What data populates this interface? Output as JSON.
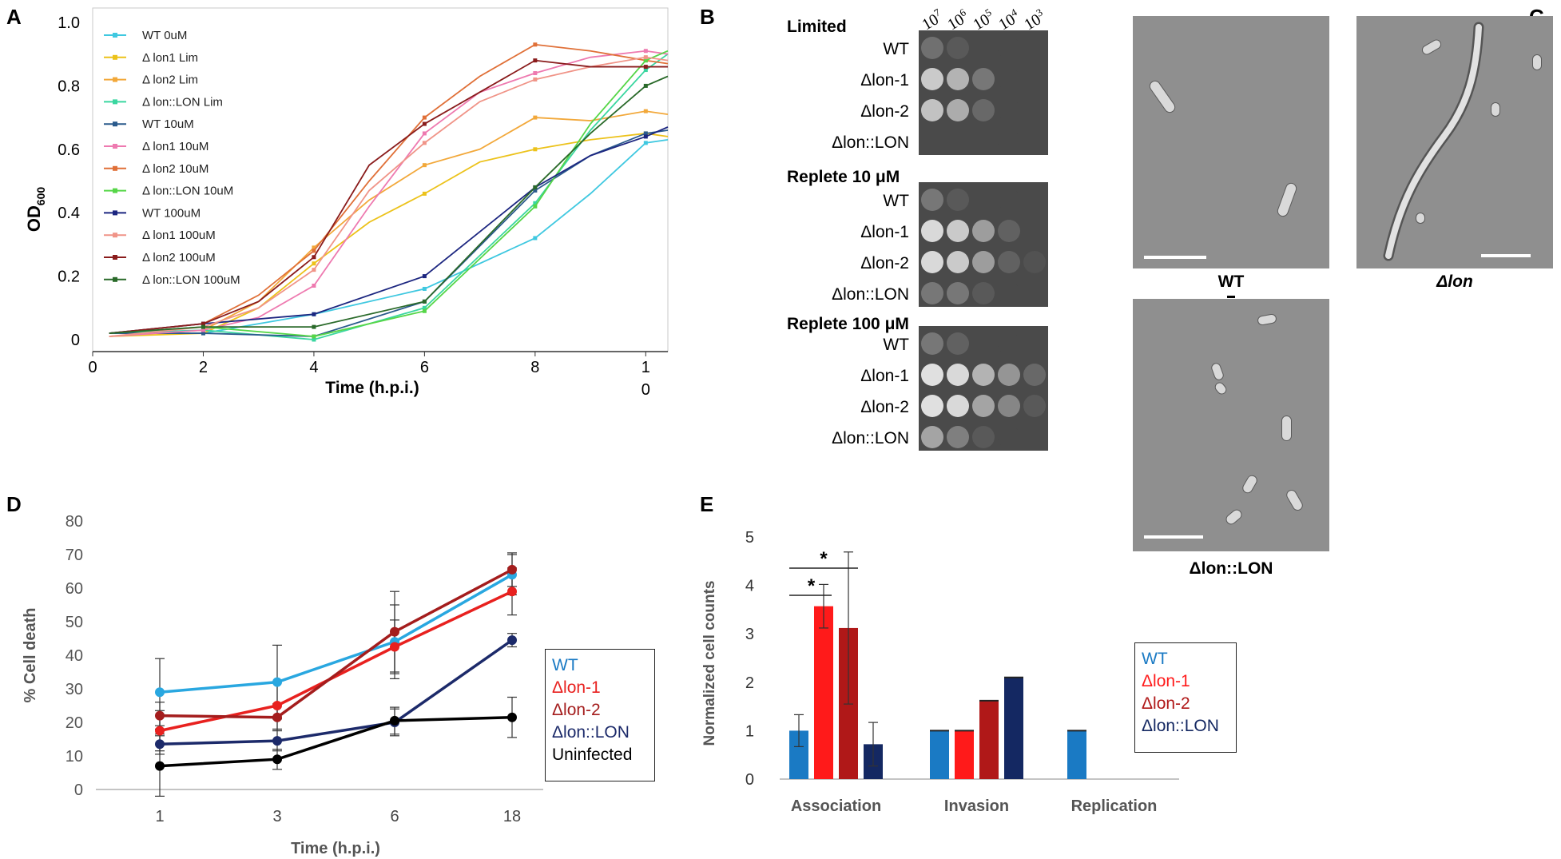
{
  "panels": {
    "A": "A",
    "B": "B",
    "C": "C",
    "D": "D",
    "E": "E"
  },
  "chart_data": [
    {
      "id": "A",
      "type": "line",
      "xlabel": "Time (h.p.i.)",
      "ylabel_main": "OD",
      "ylabel_sub": "600",
      "xlim": [
        0,
        10.4
      ],
      "ylim": [
        0,
        1.0
      ],
      "xticks": [
        {
          "v": 0,
          "l1": "0",
          "l2": ""
        },
        {
          "v": 2,
          "l1": "2",
          "l2": ""
        },
        {
          "v": 4,
          "l1": "4",
          "l2": ""
        },
        {
          "v": 6,
          "l1": "6",
          "l2": ""
        },
        {
          "v": 8,
          "l1": "8",
          "l2": ""
        },
        {
          "v": 10,
          "l1": "1",
          "l2": "0"
        }
      ],
      "yticks": [
        {
          "v": 0,
          "label": "0"
        },
        {
          "v": 0.2,
          "label": "0.2"
        },
        {
          "v": 0.4,
          "label": "0.4"
        },
        {
          "v": 0.6,
          "label": "0.6"
        },
        {
          "v": 0.8,
          "label": "0.8"
        },
        {
          "v": 1.0,
          "label": "1.0"
        }
      ],
      "series": [
        {
          "name": "WT 0uM",
          "color": "#3fc8e0",
          "x": [
            0.3,
            2,
            4,
            6,
            8,
            9,
            10,
            10.4
          ],
          "y": [
            0.02,
            0.02,
            0.08,
            0.16,
            0.32,
            0.46,
            0.62,
            0.63
          ]
        },
        {
          "name": "Δ lon1 Lim",
          "color": "#ecc21a",
          "x": [
            0.3,
            2,
            3,
            4,
            5,
            6,
            7,
            8,
            9,
            10,
            10.4
          ],
          "y": [
            0.01,
            0.02,
            0.1,
            0.24,
            0.37,
            0.46,
            0.56,
            0.6,
            0.63,
            0.65,
            0.64
          ]
        },
        {
          "name": "Δ lon2 Lim",
          "color": "#f2a83a",
          "x": [
            0.3,
            2,
            3,
            4,
            5,
            6,
            7,
            8,
            9,
            10,
            10.4
          ],
          "y": [
            0.01,
            0.03,
            0.12,
            0.29,
            0.44,
            0.55,
            0.6,
            0.7,
            0.69,
            0.72,
            0.71
          ]
        },
        {
          "name": "Δ lon::LON Lim",
          "color": "#3ad6a0",
          "x": [
            0.3,
            2,
            4,
            6,
            8,
            9,
            10,
            10.4
          ],
          "y": [
            0.02,
            0.03,
            0.0,
            0.1,
            0.43,
            0.66,
            0.85,
            0.9
          ]
        },
        {
          "name": "WT 10uM",
          "color": "#2a5a8c",
          "x": [
            0.3,
            2,
            4,
            6,
            8,
            9,
            10,
            10.4
          ],
          "y": [
            0.02,
            0.02,
            0.01,
            0.12,
            0.47,
            0.58,
            0.65,
            0.66
          ]
        },
        {
          "name": "Δ lon1 10uM",
          "color": "#ee7ab0",
          "x": [
            0.3,
            2,
            3,
            4,
            5,
            6,
            7,
            8,
            9,
            10,
            10.4
          ],
          "y": [
            0.01,
            0.03,
            0.07,
            0.17,
            0.42,
            0.65,
            0.78,
            0.84,
            0.89,
            0.91,
            0.9
          ]
        },
        {
          "name": "Δ lon2 10uM",
          "color": "#e07038",
          "x": [
            0.3,
            2,
            3,
            4,
            5,
            6,
            7,
            8,
            9,
            10,
            10.4
          ],
          "y": [
            0.02,
            0.05,
            0.14,
            0.28,
            0.5,
            0.7,
            0.83,
            0.93,
            0.91,
            0.88,
            0.87
          ]
        },
        {
          "name": "Δ lon::LON 10uM",
          "color": "#56d648",
          "x": [
            0.3,
            2,
            4,
            6,
            8,
            9,
            10,
            10.4
          ],
          "y": [
            0.02,
            0.04,
            0.01,
            0.09,
            0.42,
            0.68,
            0.88,
            0.91
          ]
        },
        {
          "name": "WT 100uM",
          "color": "#1c2680",
          "x": [
            0.3,
            2,
            4,
            6,
            8,
            9,
            10,
            10.4
          ],
          "y": [
            0.02,
            0.05,
            0.08,
            0.2,
            0.48,
            0.58,
            0.64,
            0.67
          ]
        },
        {
          "name": "Δ lon1 100uM",
          "color": "#f09488",
          "x": [
            0.3,
            2,
            3,
            4,
            5,
            6,
            7,
            8,
            9,
            10,
            10.4
          ],
          "y": [
            0.01,
            0.04,
            0.1,
            0.22,
            0.47,
            0.62,
            0.75,
            0.82,
            0.86,
            0.89,
            0.88
          ]
        },
        {
          "name": "Δ lon2 100uM",
          "color": "#8a1c1c",
          "x": [
            0.3,
            2,
            3,
            4,
            5,
            6,
            7,
            8,
            9,
            10,
            10.4
          ],
          "y": [
            0.02,
            0.05,
            0.12,
            0.26,
            0.55,
            0.68,
            0.78,
            0.88,
            0.86,
            0.86,
            0.86
          ]
        },
        {
          "name": "Δ lon::LON 100uM",
          "color": "#2a6a2a",
          "x": [
            0.3,
            2,
            4,
            6,
            8,
            9,
            10,
            10.4
          ],
          "y": [
            0.02,
            0.04,
            0.04,
            0.12,
            0.48,
            0.65,
            0.8,
            0.83
          ]
        }
      ]
    },
    {
      "id": "D",
      "type": "line",
      "xlabel": "Time (h.p.i.)",
      "ylabel": "% Cell death",
      "categories": [
        "1",
        "3",
        "6",
        "18"
      ],
      "ylim": [
        0,
        80
      ],
      "yticks": [
        0,
        10,
        20,
        30,
        40,
        50,
        60,
        70,
        80
      ],
      "series": [
        {
          "name": "WT",
          "color": "#29a7e0",
          "values": [
            29,
            32,
            44,
            64
          ],
          "err": [
            10,
            11,
            11,
            6
          ]
        },
        {
          "name": "Δlon-1",
          "color": "#e8211f",
          "values": [
            17.5,
            25,
            42.5,
            59
          ],
          "err": [
            6,
            7,
            8,
            7
          ]
        },
        {
          "name": "Δlon-2",
          "color": "#a41d1d",
          "values": [
            22,
            21.5,
            47,
            65.5
          ],
          "err": [
            4,
            4,
            12,
            5
          ]
        },
        {
          "name": "Δlon::LON",
          "color": "#1c2a6a",
          "values": [
            13.5,
            14.5,
            20,
            44.5
          ],
          "err": [
            3,
            3,
            4,
            2
          ]
        },
        {
          "name": "Uninfected",
          "color": "#000000",
          "values": [
            7,
            9,
            20.5,
            21.5
          ],
          "err": [
            9,
            3,
            4,
            6
          ]
        }
      ],
      "legend": [
        {
          "label": "WT",
          "color": "#1a7ac4"
        },
        {
          "label": "Δlon-1",
          "color": "#e8211f"
        },
        {
          "label": "Δlon-2",
          "color": "#a41d1d"
        },
        {
          "label": "Δlon::LON",
          "color": "#1c2a6a"
        },
        {
          "label": "Uninfected",
          "color": "#000000"
        }
      ]
    },
    {
      "id": "E",
      "type": "bar",
      "ylabel": "Normalized cell counts",
      "categories": [
        "Association",
        "Invasion",
        "Replication"
      ],
      "ylim": [
        0,
        5
      ],
      "yticks": [
        0,
        1,
        2,
        3,
        4,
        5
      ],
      "significance": "*",
      "series": [
        {
          "name": "WT",
          "color": "#1a7ac4",
          "values": [
            1.0,
            1.0,
            1.0
          ],
          "err": [
            0.33,
            0.0,
            0.0
          ]
        },
        {
          "name": "Δlon-1",
          "color": "#ff1a1a",
          "values": [
            3.57,
            1.0,
            0
          ],
          "err": [
            0.45,
            0.0,
            0
          ]
        },
        {
          "name": "Δlon-2",
          "color": "#b01818",
          "values": [
            3.12,
            1.62,
            0
          ],
          "err": [
            1.57,
            0.0,
            0
          ]
        },
        {
          "name": "Δlon::LON",
          "color": "#142862",
          "values": [
            0.72,
            2.1,
            0
          ],
          "err": [
            0.45,
            0.0,
            0
          ]
        }
      ],
      "legend": [
        {
          "label": "WT",
          "color": "#1a7ac4"
        },
        {
          "label": "Δlon-1",
          "color": "#ff1a1a"
        },
        {
          "label": "Δlon-2",
          "color": "#b01818"
        },
        {
          "label": "Δlon::LON",
          "color": "#142862"
        }
      ]
    }
  ],
  "plates": {
    "dilutions": [
      "10",
      "7",
      "10",
      "6",
      "10",
      "5",
      "10",
      "4",
      "10",
      "3"
    ],
    "groups": [
      {
        "title": "Limited",
        "rows": [
          "WT",
          "Δlon-1",
          "Δlon-2",
          "Δlon::LON"
        ]
      },
      {
        "title": "Replete 10 μM",
        "rows": [
          "WT",
          "Δlon-1",
          "Δlon-2",
          "Δlon::LON"
        ]
      },
      {
        "title": "Replete 100 μM",
        "rows": [
          "WT",
          "Δlon-1",
          "Δlon-2",
          "Δlon::LON"
        ]
      }
    ],
    "growth": [
      [
        0.25,
        0.85,
        0.8,
        0.0
      ],
      [
        0.1,
        0.7,
        0.65,
        0.0
      ],
      [
        0.0,
        0.3,
        0.2,
        0.0
      ],
      [
        0.0,
        0.0,
        0.0,
        0.0
      ],
      [
        0.0,
        0.0,
        0.0,
        0.0
      ],
      [
        0.3,
        0.95,
        0.95,
        0.3
      ],
      [
        0.1,
        0.85,
        0.85,
        0.3
      ],
      [
        0.0,
        0.55,
        0.55,
        0.1
      ],
      [
        0.0,
        0.15,
        0.15,
        0.0
      ],
      [
        0.0,
        0.0,
        0.05,
        0.0
      ],
      [
        0.3,
        1.0,
        1.0,
        0.6
      ],
      [
        0.15,
        0.95,
        0.95,
        0.35
      ],
      [
        0.0,
        0.7,
        0.6,
        0.1
      ],
      [
        0.0,
        0.5,
        0.4,
        0.0
      ],
      [
        0.0,
        0.2,
        0.1,
        0.0
      ]
    ]
  },
  "micrographs": {
    "wt_caption": "WT",
    "lon_caption": "Δlon",
    "comp_caption": "Δlon::LON"
  }
}
